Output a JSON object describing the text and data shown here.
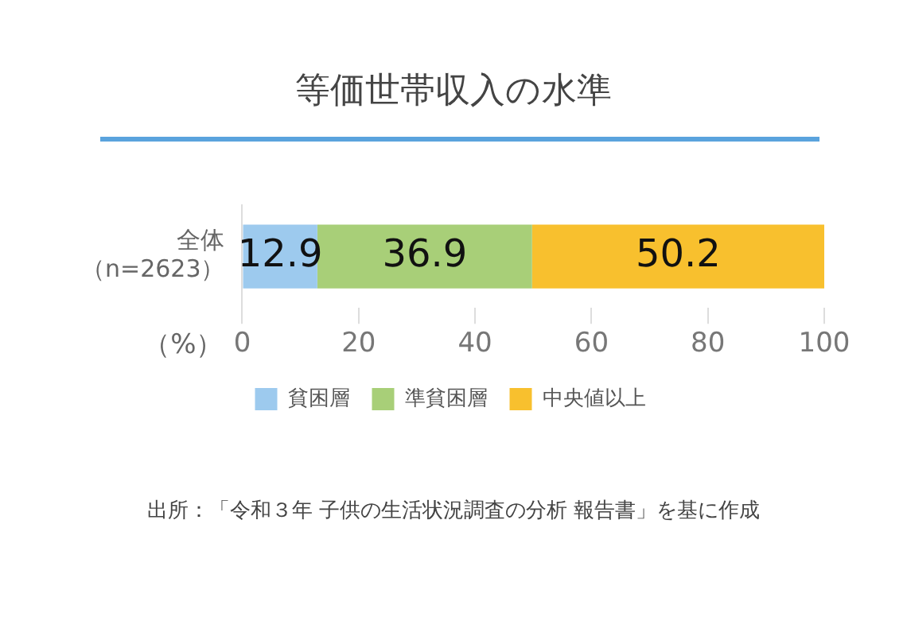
{
  "chart_data": {
    "type": "bar",
    "orientation": "horizontal",
    "stacked": true,
    "title": "等価世帯収入の水準",
    "xlabel": "（%）",
    "categories": [
      "全体（n=2623）"
    ],
    "series": [
      {
        "name": "貧困層",
        "color": "#9dcaee",
        "values": [
          12.9
        ]
      },
      {
        "name": "準貧困層",
        "color": "#a8cf78",
        "values": [
          36.9
        ]
      },
      {
        "name": "中央値以上",
        "color": "#f8c02e",
        "values": [
          50.2
        ]
      }
    ],
    "xlim": [
      0,
      100
    ],
    "xticks": [
      0,
      20,
      40,
      60,
      80,
      100
    ],
    "grid": false,
    "legend": "bottom",
    "data_labels": true,
    "annotations": [
      "出所：「令和３年 子供の生活状況調査の分析 報告書」を基に作成"
    ]
  }
}
